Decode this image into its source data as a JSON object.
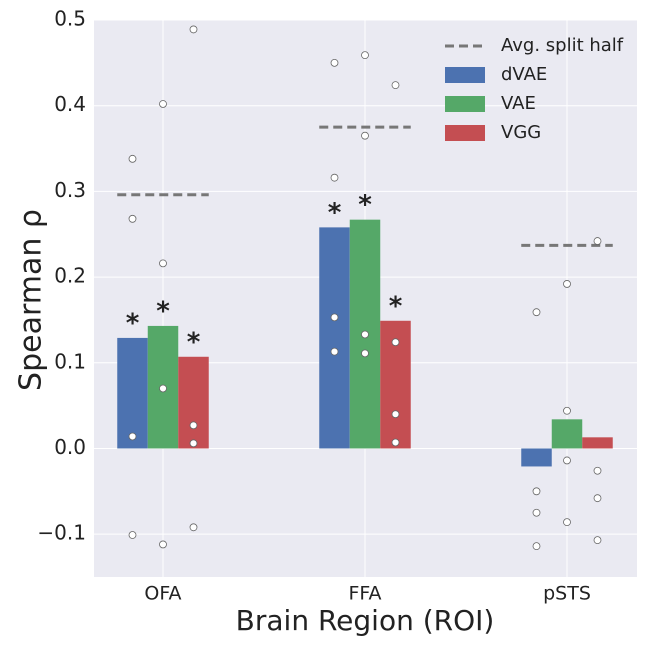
{
  "chart_data": {
    "type": "bar",
    "x_label": "Brain Region (ROI)",
    "y_label": "Spearman  ρ",
    "categories": [
      "OFA",
      "FFA",
      "pSTS"
    ],
    "series": [
      {
        "name": "dVAE",
        "color": "#4c72b0",
        "values": [
          0.129,
          0.258,
          -0.021
        ],
        "stars": [
          "*",
          "*",
          null
        ],
        "points": [
          [
            0.338,
            0.268,
            0.014,
            -0.101
          ],
          [
            0.45,
            0.316,
            0.153,
            0.113
          ],
          [
            0.159,
            -0.05,
            -0.075,
            -0.114
          ]
        ]
      },
      {
        "name": "VAE",
        "color": "#55a868",
        "values": [
          0.143,
          0.267,
          0.034
        ],
        "stars": [
          "*",
          "*",
          null
        ],
        "points": [
          [
            0.402,
            0.216,
            0.07,
            -0.112
          ],
          [
            0.459,
            0.365,
            0.133,
            0.111
          ],
          [
            0.192,
            0.044,
            -0.014,
            -0.086
          ]
        ]
      },
      {
        "name": "VGG",
        "color": "#c44e52",
        "values": [
          0.107,
          0.149,
          0.013
        ],
        "stars": [
          "*",
          "*",
          null
        ],
        "points": [
          [
            0.489,
            0.027,
            0.006,
            -0.092
          ],
          [
            0.424,
            0.124,
            0.04,
            0.007
          ],
          [
            0.242,
            -0.026,
            -0.058,
            -0.107
          ]
        ]
      }
    ],
    "reference": {
      "name": "Avg. split half",
      "color": "#777777",
      "values": [
        0.296,
        0.375,
        0.237
      ]
    },
    "ylim": [
      -0.15,
      0.5
    ],
    "yticks": [
      {
        "value": -0.1,
        "label": "−0.1"
      },
      {
        "value": 0,
        "label": "0.0"
      },
      0.1,
      0.2,
      0.3,
      0.4,
      0.5
    ],
    "grid": true,
    "legend": "upper right"
  }
}
